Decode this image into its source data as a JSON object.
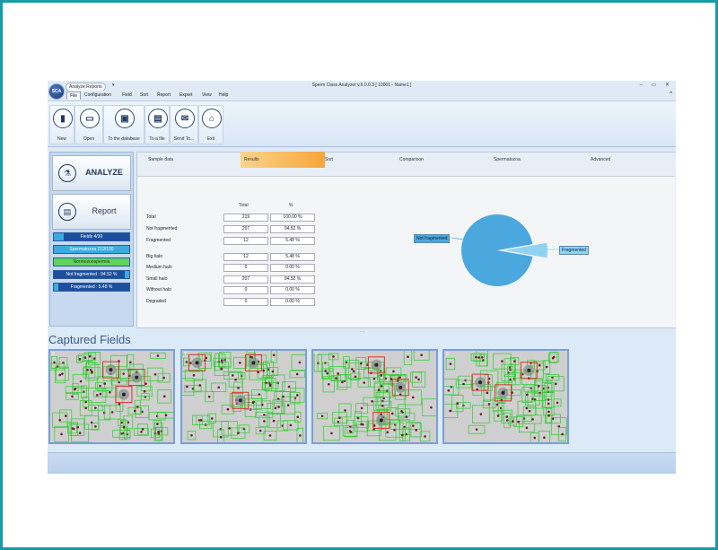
{
  "quick_access": {
    "label": "Analyze  Reports",
    "arrow": "▾"
  },
  "window": {
    "title": "Sperm Class Analyzer v.6.0.0.3  [ 10001 - Name1 ]",
    "controls": "– ▭ ✕",
    "logo": "SCA"
  },
  "menu": {
    "items": [
      "File",
      "Configuration",
      "Field",
      "Sort",
      "Report",
      "Export",
      "View",
      "Help"
    ],
    "collapse": "^"
  },
  "ribbon": {
    "buttons": [
      {
        "label": "New",
        "icon": "new-file-icon",
        "glyph": "▮"
      },
      {
        "label": "Open",
        "icon": "folder-icon",
        "glyph": "▭"
      },
      {
        "label": "To the database",
        "icon": "floppy-disk-icon",
        "glyph": "▣"
      },
      {
        "label": "To a file",
        "icon": "file-export-icon",
        "glyph": "▤"
      },
      {
        "label": "Send To...",
        "icon": "send-mail-icon",
        "glyph": "✉"
      },
      {
        "label": "Exit",
        "icon": "home-icon",
        "glyph": "⌂"
      }
    ]
  },
  "left_panel": {
    "analyze_label": "ANALYZE",
    "report_label": "Report",
    "stats": [
      {
        "text": "Fields 4/30",
        "fill": 0.133
      },
      {
        "text": "Spermatozoa 219/100",
        "fill": 1.0
      },
      {
        "text": "Normozoospermia",
        "fill": 1.0,
        "color": "#5ed65a",
        "text_color": "#1b3b12"
      },
      {
        "text": "Not fragmented : 94.52 %",
        "fill": 0.9452,
        "color": "#1c4f9e",
        "bg": "#3caae0"
      },
      {
        "text": "Fragmented : 5.48 %",
        "fill": 0.0548
      }
    ]
  },
  "tabs": [
    "Sample data",
    "Results",
    "Sort",
    "Comparison",
    "Spermatozoa",
    "Advanced"
  ],
  "results": {
    "headers": [
      "Total",
      "%"
    ],
    "rows": [
      {
        "label": "Total",
        "total": "219",
        "pct": "100.00 %"
      },
      {
        "label": "Not fragmented",
        "total": "207",
        "pct": "94.52 %"
      },
      {
        "label": "Fragmented",
        "total": "12",
        "pct": "5.48 %"
      },
      {
        "label": "Big halo",
        "total": "12",
        "pct": "5.48 %"
      },
      {
        "label": "Medium halo",
        "total": "0",
        "pct": "0.00 %"
      },
      {
        "label": "Small halo",
        "total": "207",
        "pct": "94.52 %"
      },
      {
        "label": "Without halo",
        "total": "0",
        "pct": "0.00 %"
      },
      {
        "label": "Degraded",
        "total": "0",
        "pct": "0.00 %"
      }
    ]
  },
  "chart_data": {
    "type": "pie",
    "slices": [
      {
        "label": "Not fragmented",
        "value": 94.52,
        "color": "#4aa8de"
      },
      {
        "label": "Fragmented",
        "value": 5.48,
        "color": "#8fd3f2"
      }
    ]
  },
  "captured": {
    "title": "Captured Fields",
    "fields": [
      {
        "num": "0",
        "seed": 3
      },
      {
        "num": "1",
        "seed": 11
      },
      {
        "num": "2",
        "seed": 23
      },
      {
        "num": "3",
        "seed": 37
      }
    ]
  },
  "colors": {
    "accent": "#1a9aa5",
    "active_tab": "#f6a63a",
    "box_green": "#2ecc2e",
    "box_red": "#e02020"
  }
}
